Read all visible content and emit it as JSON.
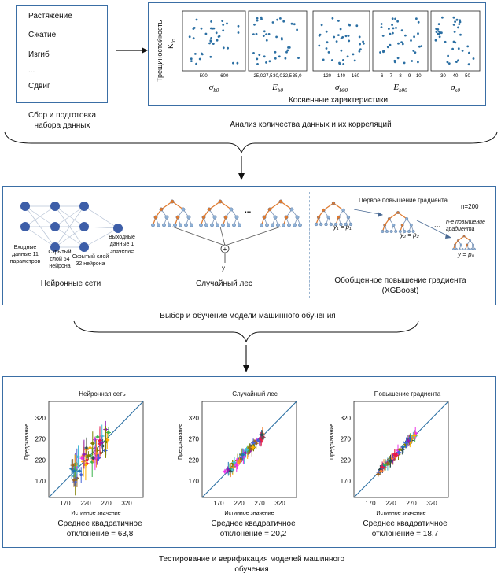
{
  "stage1": {
    "load_types": [
      "Растяжение",
      "Сжатие",
      "Изгиб",
      "...",
      "Сдвиг"
    ],
    "caption": "Сбор и подготовка набора данных"
  },
  "correlation": {
    "y_label": "Трещиностойкость",
    "y_symbol": "K",
    "y_subscript": "Ic",
    "panels": [
      {
        "symbol": "σ",
        "sub": "b0",
        "ticks": [
          "500",
          "600"
        ]
      },
      {
        "symbol": "E",
        "sub": "b0",
        "ticks": [
          "25,0",
          "27,5",
          "30,0",
          "32,5",
          "35,0"
        ]
      },
      {
        "symbol": "σ",
        "sub": "b90",
        "ticks": [
          "120",
          "140",
          "160"
        ]
      },
      {
        "symbol": "E",
        "sub": "b90",
        "ticks": [
          "6",
          "7",
          "8",
          "9",
          "10"
        ]
      },
      {
        "symbol": "σ",
        "sub": "s0",
        "ticks": [
          "30",
          "40",
          "50"
        ]
      }
    ],
    "inner_caption": "Косвенные характеристики",
    "caption": "Анализ количества данных и их корреляций"
  },
  "models": {
    "nn": {
      "title": "Нейронные сети",
      "input": "Входные данные 11 параметров",
      "hidden1": "Скрытый слой 64 нейрона",
      "hidden2": "Скрытый слой 32 нейрона",
      "output": "Выходные данные 1 значение"
    },
    "rf": {
      "title": "Случайный лес",
      "dots": "...",
      "plus": "+",
      "out": "y"
    },
    "xgb": {
      "title": "Обобщенное повышение градиента (XGBoost)",
      "first": "Первое повышение градиента",
      "n": "n=200",
      "nth": "n-е повышение градиента",
      "y1": "y₁ = p₁",
      "y2": "y₂ = p₂",
      "yn": "y = pₙ",
      "dots": "..."
    },
    "caption": "Выбор и обучение модели машинного обучения"
  },
  "testing": {
    "caption": "Тестирование и верификация моделей машинного обучения",
    "plots": [
      {
        "title": "Нейронная сеть",
        "xlabel": "Истинное значение",
        "ylabel": "Предсказание",
        "ticks": [
          "170",
          "220",
          "270",
          "320"
        ],
        "rmse_label": "Среднее квадратичное отклонение = 63,8"
      },
      {
        "title": "Случайный лес",
        "xlabel": "Истинное значение",
        "ylabel": "Предсказание",
        "ticks": [
          "170",
          "220",
          "270",
          "320"
        ],
        "rmse_label": "Среднее квадратичное отклонение = 20,2"
      },
      {
        "title": "Повышение градиента",
        "xlabel": "Истинное значение",
        "ylabel": "Предсказание",
        "ticks": [
          "170",
          "220",
          "270",
          "320"
        ],
        "rmse_label": "Среднее квадратичное отклонение = 18,7"
      }
    ]
  },
  "colors": {
    "frame": "#3a6ea5",
    "point": "#2b6fa3",
    "node": "#3d5ea8",
    "tree_orange": "#e07a2e"
  }
}
